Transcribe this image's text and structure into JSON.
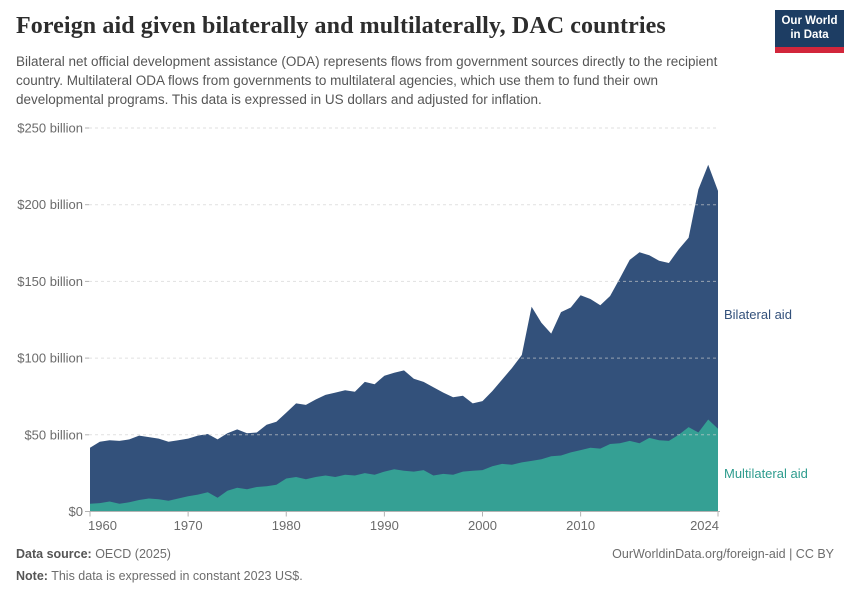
{
  "header": {
    "title": "Foreign aid given bilaterally and multilaterally, DAC countries",
    "subtitle": "Bilateral net official development assistance (ODA) represents flows from government sources directly to the recipient country. Multilateral ODA flows from governments to multilateral agencies, which use them to fund their own developmental programs. This data is expressed in US dollars and adjusted for inflation.",
    "logo": {
      "line1": "Our World",
      "line2": "in Data",
      "bg_color": "#1d3d63",
      "accent_color": "#d2263b"
    }
  },
  "footer": {
    "source_label": "Data source:",
    "source_value": " OECD (2025)",
    "note_label": "Note:",
    "note_value": " This data is expressed in constant 2023 US$.",
    "link": "OurWorldinData.org/foreign-aid | CC BY"
  },
  "chart_data": {
    "type": "area",
    "stacked": true,
    "title": "Foreign aid given bilaterally and multilaterally, DAC countries",
    "xlabel": "",
    "ylabel": "",
    "unit": "US$ billion (constant 2023 US$)",
    "xlim": [
      1960,
      2024
    ],
    "ylim": [
      0,
      250
    ],
    "grid": "dashed horizontal",
    "legend_position": "right-edge-labels",
    "years": [
      1960,
      1961,
      1962,
      1963,
      1964,
      1965,
      1966,
      1967,
      1968,
      1969,
      1970,
      1971,
      1972,
      1973,
      1974,
      1975,
      1976,
      1977,
      1978,
      1979,
      1980,
      1981,
      1982,
      1983,
      1984,
      1985,
      1986,
      1987,
      1988,
      1989,
      1990,
      1991,
      1992,
      1993,
      1994,
      1995,
      1996,
      1997,
      1998,
      1999,
      2000,
      2001,
      2002,
      2003,
      2004,
      2005,
      2006,
      2007,
      2008,
      2009,
      2010,
      2011,
      2012,
      2013,
      2014,
      2015,
      2016,
      2017,
      2018,
      2019,
      2020,
      2021,
      2022,
      2023,
      2024
    ],
    "series": [
      {
        "name": "Bilateral aid",
        "color": "#33517b",
        "label_color": "#33517b",
        "values": [
          36.5,
          40,
          40,
          41,
          41,
          42,
          40,
          39.5,
          38.5,
          38,
          37.5,
          38.5,
          38,
          38,
          37.5,
          38,
          36.5,
          35.5,
          40,
          41,
          43,
          48,
          48.5,
          50.5,
          52.5,
          55,
          55,
          54.5,
          59.5,
          59,
          62.5,
          63,
          65.5,
          60.5,
          57.5,
          57.5,
          53,
          50.5,
          49.5,
          44,
          45,
          49,
          55,
          63,
          70,
          100.5,
          89,
          80,
          93.5,
          94.5,
          101,
          97,
          93.5,
          96.5,
          107.5,
          118,
          124.5,
          119,
          117,
          116,
          121,
          123.5,
          158.5,
          166,
          155
        ]
      },
      {
        "name": "Multilateral aid",
        "color": "#35a094",
        "label_color": "#2e9c8e",
        "values": [
          5,
          5.5,
          6.5,
          5,
          6,
          7.5,
          8.5,
          8,
          7,
          8.5,
          10,
          11,
          12.5,
          9,
          13.5,
          15.5,
          14.5,
          16,
          16.5,
          17.5,
          21.5,
          22.5,
          21,
          22.5,
          23.5,
          22.5,
          24,
          23.5,
          25,
          24,
          26,
          27.5,
          26.5,
          26,
          27,
          23.5,
          24.5,
          24,
          26,
          26.5,
          27,
          29.5,
          31,
          30.5,
          32,
          33,
          34,
          36,
          36.5,
          38.5,
          40,
          41.5,
          41,
          44,
          44.5,
          46,
          44.5,
          48,
          46.5,
          46,
          50,
          55,
          51.5,
          60,
          54
        ]
      }
    ],
    "y_ticks": [
      {
        "value": 0,
        "label": "$0"
      },
      {
        "value": 50,
        "label": "$50 billion"
      },
      {
        "value": 100,
        "label": "$100 billion"
      },
      {
        "value": 150,
        "label": "$150 billion"
      },
      {
        "value": 200,
        "label": "$200 billion"
      },
      {
        "value": 250,
        "label": "$250 billion"
      }
    ],
    "x_ticks": [
      {
        "value": 1960,
        "label": "1960"
      },
      {
        "value": 1970,
        "label": "1970"
      },
      {
        "value": 1980,
        "label": "1980"
      },
      {
        "value": 1990,
        "label": "1990"
      },
      {
        "value": 2000,
        "label": "2000"
      },
      {
        "value": 2010,
        "label": "2010"
      },
      {
        "value": 2024,
        "label": "2024"
      }
    ],
    "colors": {
      "axis_text": "#6b6b6b",
      "gridline": "#cfcfcf",
      "axis_line": "#b3b3b3"
    }
  }
}
